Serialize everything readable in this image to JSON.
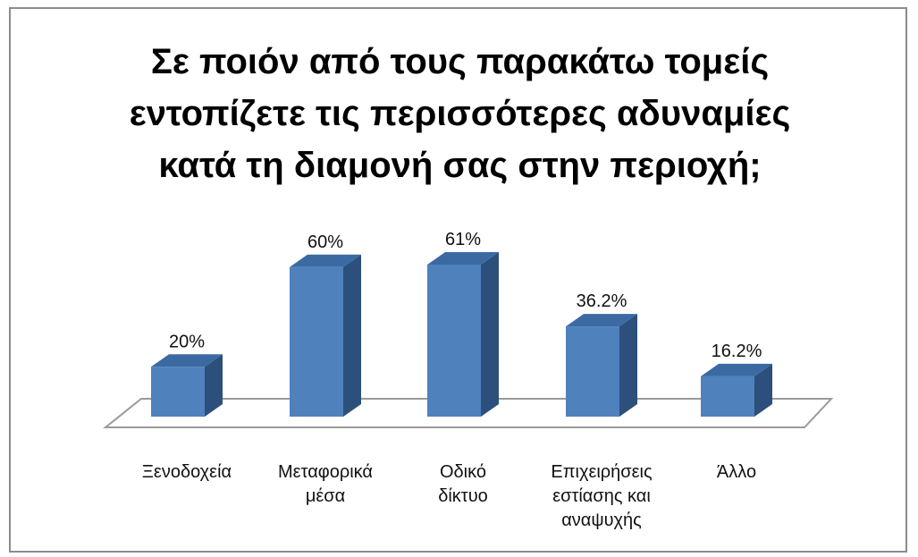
{
  "chart_data": {
    "type": "bar",
    "title_lines": [
      "Σε ποιόν από τους παρακάτω τομείς",
      "εντοπίζετε τις περισσότερες αδυναμίες",
      "κατά τη διαμονή σας στην περιοχή;"
    ],
    "categories": [
      [
        "Ξενοδοχεία"
      ],
      [
        "Μεταφορικά",
        "μέσα"
      ],
      [
        "Οδικό",
        "δίκτυο"
      ],
      [
        "Επιχειρήσεις",
        "εστίασης και",
        "αναψυχής"
      ],
      [
        "Άλλο"
      ]
    ],
    "values": [
      20,
      60,
      61,
      36.2,
      16.2
    ],
    "value_labels": [
      "20%",
      "60%",
      "61%",
      "36.2%",
      "16.2%"
    ],
    "ylim": [
      0,
      65
    ],
    "style": "3d-column",
    "grid": false,
    "legend": "none",
    "colors": {
      "bar_front": "#4f81bd",
      "bar_top": "#3b6aa3",
      "bar_side": "#2c4f7c",
      "floor_stroke": "#9a9a9a",
      "frame": "#8c8c8c"
    }
  }
}
